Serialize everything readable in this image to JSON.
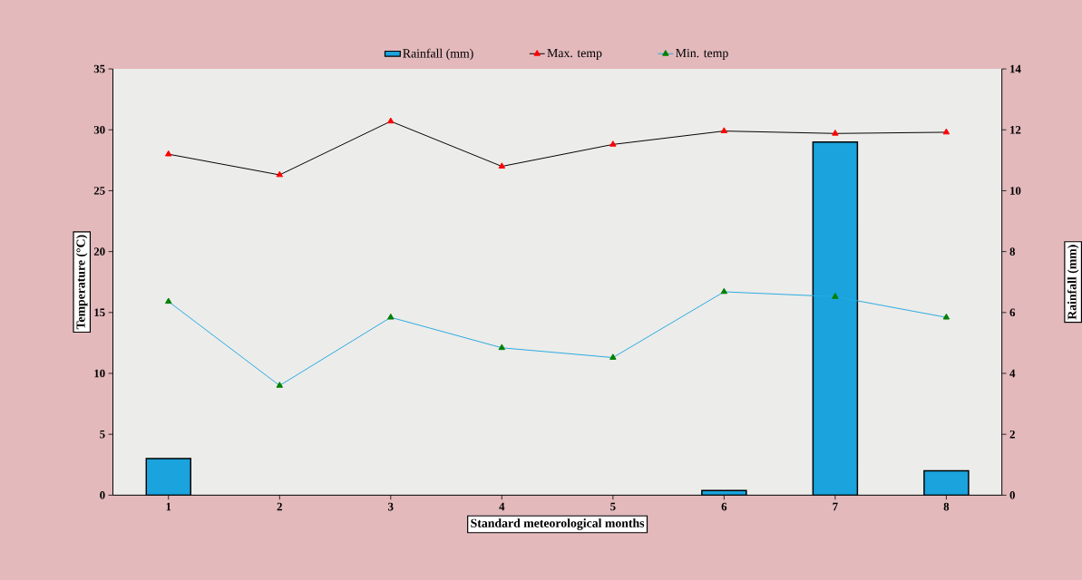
{
  "chart_data": {
    "type": "line",
    "xlabel": "Standard meteorological months",
    "ylabel": "Temperature (°C)",
    "y2label": "Rainfall (mm)",
    "categories": [
      "1",
      "2",
      "3",
      "4",
      "5",
      "6",
      "7",
      "8"
    ],
    "series": [
      {
        "name": "Rainfall (mm)",
        "type": "bar",
        "axis": "y2",
        "color": "#1aa3dc",
        "values": [
          1.2,
          null,
          null,
          null,
          null,
          0.15,
          11.6,
          0.8
        ]
      },
      {
        "name": "Max. temp",
        "color": "#000000",
        "values": [
          28.0,
          26.3,
          30.7,
          27.0,
          28.8,
          29.9,
          29.7,
          29.8
        ]
      },
      {
        "name": "Min. temp",
        "color": "#29abe2",
        "values": [
          15.9,
          9.0,
          14.6,
          12.1,
          11.3,
          16.7,
          16.3,
          14.6
        ]
      }
    ],
    "ylim": [
      0,
      35
    ],
    "yticks": [
      0,
      5,
      10,
      15,
      20,
      25,
      30,
      35
    ],
    "y2lim": [
      0,
      14
    ],
    "y2ticks": [
      0,
      2,
      4,
      6,
      8,
      10,
      12,
      14
    ],
    "legend": "top",
    "marker": "triangle",
    "line_style": "solid",
    "grid": false
  }
}
